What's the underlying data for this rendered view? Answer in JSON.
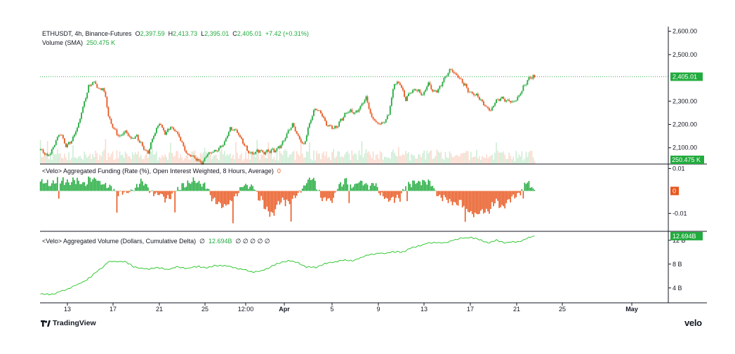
{
  "header": {
    "symbol": "ETHUSDT, 4h, Binance-Futures",
    "o_label": "O",
    "o": "2,397.59",
    "h_label": "H",
    "h": "2,413.73",
    "l_label": "L",
    "l": "2,395.01",
    "c_label": "C",
    "c": "2,405.01",
    "change": "+7.42 (+0.31%)",
    "volume_label": "Volume (SMA)",
    "volume_value": "250.475 K"
  },
  "funding_panel": {
    "title": "<Velo> Aggregated Funding (Rate (%), Open Interest Weighted, 8 Hours, Average)",
    "value": "0"
  },
  "cvd_panel": {
    "title": "<Velo> Aggregated Volume (Dollars, Cumulative Delta)",
    "value": "12.694B",
    "extra": "∅ ∅ ∅ ∅ ∅",
    "extra_pre": "∅"
  },
  "brand": {
    "tradingview": "TradingView",
    "velo": "velo"
  },
  "colors": {
    "up": "#22ab3e",
    "down": "#e8571f",
    "cvd_line": "#22c322"
  },
  "chart_data": [
    {
      "type": "candlestick",
      "title": "ETHUSDT, 4h, Binance-Futures",
      "ylim": [
        2030,
        2620
      ],
      "y_ticks": [
        "2,600.00",
        "2,500.00",
        "2,300.00",
        "2,200.00",
        "2,100.00"
      ],
      "last_price": "2,405.01",
      "volume_sma_label": "250.475 K",
      "x_ticks": [
        "13",
        "17",
        "21",
        "25",
        "12:00",
        "Apr",
        "5",
        "9",
        "13",
        "17",
        "21",
        "25",
        "May"
      ],
      "grid": false,
      "anchors": [
        [
          0,
          2090
        ],
        [
          5,
          2065
        ],
        [
          10,
          2115
        ],
        [
          14,
          2160
        ],
        [
          18,
          2110
        ],
        [
          22,
          2130
        ],
        [
          26,
          2180
        ],
        [
          30,
          2280
        ],
        [
          34,
          2360
        ],
        [
          36,
          2370
        ],
        [
          38,
          2380
        ],
        [
          41,
          2355
        ],
        [
          44,
          2360
        ],
        [
          46,
          2320
        ],
        [
          48,
          2230
        ],
        [
          52,
          2180
        ],
        [
          56,
          2150
        ],
        [
          60,
          2165
        ],
        [
          64,
          2140
        ],
        [
          68,
          2150
        ],
        [
          72,
          2100
        ],
        [
          76,
          2080
        ],
        [
          80,
          2160
        ],
        [
          84,
          2200
        ],
        [
          88,
          2165
        ],
        [
          92,
          2190
        ],
        [
          96,
          2165
        ],
        [
          100,
          2120
        ],
        [
          104,
          2070
        ],
        [
          108,
          2060
        ],
        [
          112,
          2045
        ],
        [
          114,
          2035
        ],
        [
          118,
          2070
        ],
        [
          122,
          2085
        ],
        [
          126,
          2100
        ],
        [
          130,
          2120
        ],
        [
          134,
          2180
        ],
        [
          138,
          2180
        ],
        [
          142,
          2130
        ],
        [
          146,
          2090
        ],
        [
          150,
          2080
        ],
        [
          154,
          2085
        ],
        [
          158,
          2080
        ],
        [
          162,
          2090
        ],
        [
          166,
          2085
        ],
        [
          170,
          2110
        ],
        [
          174,
          2160
        ],
        [
          178,
          2200
        ],
        [
          182,
          2150
        ],
        [
          186,
          2110
        ],
        [
          190,
          2200
        ],
        [
          194,
          2270
        ],
        [
          198,
          2250
        ],
        [
          202,
          2200
        ],
        [
          206,
          2185
        ],
        [
          210,
          2200
        ],
        [
          214,
          2230
        ],
        [
          218,
          2260
        ],
        [
          222,
          2250
        ],
        [
          226,
          2270
        ],
        [
          230,
          2320
        ],
        [
          234,
          2230
        ],
        [
          238,
          2200
        ],
        [
          242,
          2205
        ],
        [
          246,
          2250
        ],
        [
          250,
          2370
        ],
        [
          254,
          2380
        ],
        [
          258,
          2310
        ],
        [
          262,
          2340
        ],
        [
          266,
          2350
        ],
        [
          270,
          2330
        ],
        [
          274,
          2370
        ],
        [
          278,
          2340
        ],
        [
          282,
          2360
        ],
        [
          286,
          2400
        ],
        [
          290,
          2440
        ],
        [
          294,
          2410
        ],
        [
          298,
          2380
        ],
        [
          302,
          2350
        ],
        [
          306,
          2330
        ],
        [
          310,
          2310
        ],
        [
          314,
          2280
        ],
        [
          318,
          2260
        ],
        [
          322,
          2300
        ],
        [
          326,
          2320
        ],
        [
          330,
          2300
        ],
        [
          334,
          2290
        ],
        [
          338,
          2330
        ],
        [
          342,
          2370
        ],
        [
          346,
          2400
        ],
        [
          348,
          2405
        ]
      ]
    },
    {
      "type": "bar",
      "title": "<Velo> Aggregated Funding (Rate (%), Open Interest Weighted, 8 Hours, Average)",
      "ylim": [
        -0.018,
        0.012
      ],
      "y_ticks": [
        "0.01",
        "-0.01"
      ],
      "last_value": "0",
      "anchors": [
        [
          0,
          0.0035
        ],
        [
          10,
          0.004
        ],
        [
          20,
          0.0045
        ],
        [
          30,
          0.004
        ],
        [
          40,
          0.0055
        ],
        [
          45,
          0.003
        ],
        [
          50,
          0.001
        ],
        [
          56,
          -0.001
        ],
        [
          60,
          -0.0015
        ],
        [
          66,
          0.0015
        ],
        [
          70,
          0.0035
        ],
        [
          75,
          0.0025
        ],
        [
          82,
          -0.002
        ],
        [
          88,
          -0.003
        ],
        [
          94,
          -0.0015
        ],
        [
          98,
          -0.0005
        ],
        [
          100,
          0.003
        ],
        [
          106,
          0.0035
        ],
        [
          110,
          0.004
        ],
        [
          116,
          0.0035
        ],
        [
          120,
          -0.003
        ],
        [
          126,
          -0.005
        ],
        [
          130,
          -0.007
        ],
        [
          134,
          -0.006
        ],
        [
          138,
          -0.002
        ],
        [
          144,
          0.002
        ],
        [
          150,
          0.0035
        ],
        [
          154,
          -0.003
        ],
        [
          160,
          -0.008
        ],
        [
          164,
          -0.011
        ],
        [
          168,
          -0.006
        ],
        [
          172,
          -0.004
        ],
        [
          176,
          -0.005
        ],
        [
          180,
          -0.0035
        ],
        [
          184,
          0.0015
        ],
        [
          188,
          0.004
        ],
        [
          194,
          0.0045
        ],
        [
          198,
          -0.002
        ],
        [
          202,
          -0.0045
        ],
        [
          206,
          -0.0045
        ],
        [
          210,
          0.002
        ],
        [
          216,
          0.004
        ],
        [
          220,
          0.003
        ],
        [
          226,
          0.0035
        ],
        [
          230,
          0.0025
        ],
        [
          236,
          0.0035
        ],
        [
          240,
          -0.002
        ],
        [
          246,
          -0.0035
        ],
        [
          250,
          -0.0045
        ],
        [
          254,
          -0.0025
        ],
        [
          258,
          0.0035
        ],
        [
          262,
          0.002
        ],
        [
          266,
          0.0045
        ],
        [
          270,
          0.004
        ],
        [
          276,
          0.003
        ],
        [
          280,
          -0.001
        ],
        [
          286,
          -0.0045
        ],
        [
          292,
          -0.0045
        ],
        [
          298,
          -0.0065
        ],
        [
          304,
          -0.009
        ],
        [
          308,
          -0.011
        ],
        [
          312,
          -0.0095
        ],
        [
          318,
          -0.0075
        ],
        [
          322,
          -0.0055
        ],
        [
          326,
          -0.007
        ],
        [
          330,
          -0.005
        ],
        [
          334,
          -0.003
        ],
        [
          338,
          -0.001
        ],
        [
          342,
          0.0045
        ],
        [
          346,
          0.002
        ],
        [
          348,
          0.001
        ]
      ]
    },
    {
      "type": "line",
      "title": "<Velo> Aggregated Volume (Dollars, Cumulative Delta)",
      "ylim": [
        1.5,
        13.5
      ],
      "y_ticks": [
        "12 B",
        "8 B",
        "4 B"
      ],
      "last_value": "12.694B",
      "anchors": [
        [
          0,
          2.9
        ],
        [
          10,
          3.0
        ],
        [
          20,
          3.9
        ],
        [
          30,
          5.0
        ],
        [
          36,
          5.9
        ],
        [
          40,
          6.8
        ],
        [
          44,
          7.5
        ],
        [
          48,
          8.4
        ],
        [
          55,
          8.5
        ],
        [
          60,
          8.3
        ],
        [
          66,
          7.6
        ],
        [
          70,
          7.3
        ],
        [
          76,
          7.2
        ],
        [
          82,
          7.4
        ],
        [
          90,
          7.1
        ],
        [
          96,
          7.5
        ],
        [
          104,
          7.3
        ],
        [
          112,
          7.6
        ],
        [
          118,
          7.4
        ],
        [
          124,
          7.8
        ],
        [
          130,
          7.7
        ],
        [
          136,
          7.5
        ],
        [
          140,
          7.2
        ],
        [
          146,
          6.9
        ],
        [
          150,
          6.7
        ],
        [
          156,
          6.8
        ],
        [
          162,
          7.5
        ],
        [
          170,
          8.3
        ],
        [
          176,
          8.6
        ],
        [
          182,
          8.2
        ],
        [
          188,
          7.5
        ],
        [
          194,
          7.4
        ],
        [
          200,
          8.0
        ],
        [
          206,
          8.3
        ],
        [
          212,
          8.6
        ],
        [
          220,
          8.6
        ],
        [
          226,
          9.0
        ],
        [
          232,
          9.6
        ],
        [
          240,
          9.8
        ],
        [
          248,
          10.0
        ],
        [
          256,
          10.1
        ],
        [
          262,
          10.7
        ],
        [
          268,
          11.1
        ],
        [
          274,
          11.5
        ],
        [
          280,
          11.7
        ],
        [
          286,
          11.5
        ],
        [
          292,
          12.1
        ],
        [
          298,
          12.3
        ],
        [
          304,
          12.5
        ],
        [
          310,
          12.1
        ],
        [
          316,
          11.6
        ],
        [
          322,
          12.0
        ],
        [
          328,
          11.6
        ],
        [
          334,
          11.7
        ],
        [
          340,
          11.9
        ],
        [
          346,
          12.5
        ],
        [
          348,
          12.69
        ]
      ]
    }
  ]
}
